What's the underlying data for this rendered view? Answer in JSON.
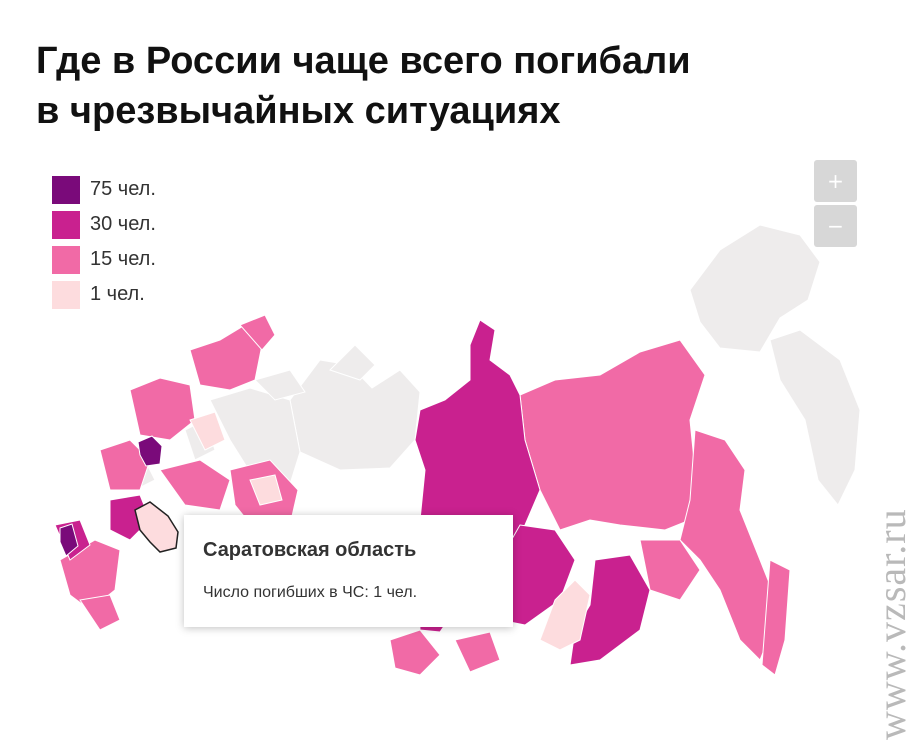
{
  "title": {
    "line1": "Где в России чаще всего погибали",
    "line2": "в чрезвычайных ситуациях"
  },
  "legend": [
    {
      "label": "75 чел.",
      "color": "#7a0a7a"
    },
    {
      "label": "30 чел.",
      "color": "#c9218f"
    },
    {
      "label": "15 чел.",
      "color": "#f16aa6"
    },
    {
      "label": "1 чел.",
      "color": "#fddcde"
    }
  ],
  "zoom": {
    "in_label": "+",
    "out_label": "−"
  },
  "tooltip": {
    "region": "Саратовская область",
    "text": "Число погибших в ЧС: 1 чел."
  },
  "map_colors": {
    "no_data": "#eeecec",
    "max": "#7a0a7a",
    "high": "#c9218f",
    "mid": "#f16aa6",
    "low": "#fddcde",
    "border": "#ffffff"
  },
  "watermark": "www.vzsar.ru"
}
